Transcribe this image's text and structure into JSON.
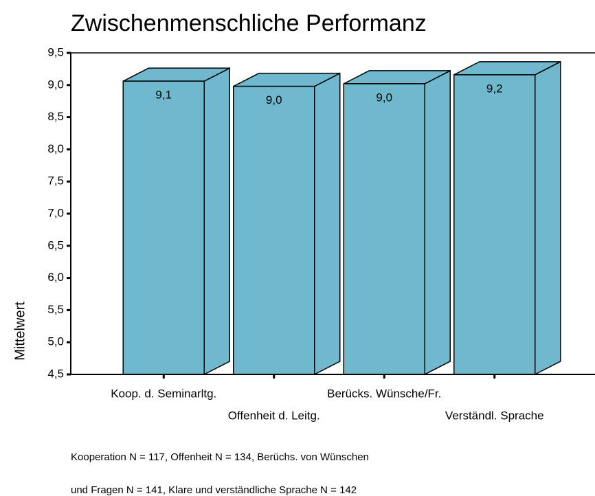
{
  "chart_data": {
    "type": "bar3d",
    "title": "Zwischenmenschliche Performanz",
    "ylabel": "Mittelwert",
    "categories": [
      "Koop. d. Seminarltg.",
      "Offenheit d. Leitg.",
      "Berücks. Wünsche/Fr.",
      "Verständl. Sprache"
    ],
    "values": [
      9.06,
      8.98,
      9.02,
      9.16
    ],
    "value_labels": [
      "9,1",
      "9,0",
      "9,0",
      "9,2"
    ],
    "color": "#70b8cd",
    "ylim": [
      4.5,
      9.5
    ],
    "yticks": [
      {
        "value": 4.5,
        "label": "4,5"
      },
      {
        "value": 5.0,
        "label": "5,0"
      },
      {
        "value": 5.5,
        "label": "5,5"
      },
      {
        "value": 6.0,
        "label": "6,0"
      },
      {
        "value": 6.5,
        "label": "6,5"
      },
      {
        "value": 7.0,
        "label": "7,0"
      },
      {
        "value": 7.5,
        "label": "7,5"
      },
      {
        "value": 8.0,
        "label": "8,0"
      },
      {
        "value": 8.5,
        "label": "8,5"
      },
      {
        "value": 9.0,
        "label": "9,0"
      },
      {
        "value": 9.5,
        "label": "9,5"
      }
    ],
    "notes": [
      "Kooperation N = 117, Offenheit N = 134, Berüchs. von Wünschen",
      "und Fragen N = 141, Klare und verständliche Sprache N = 142"
    ]
  }
}
